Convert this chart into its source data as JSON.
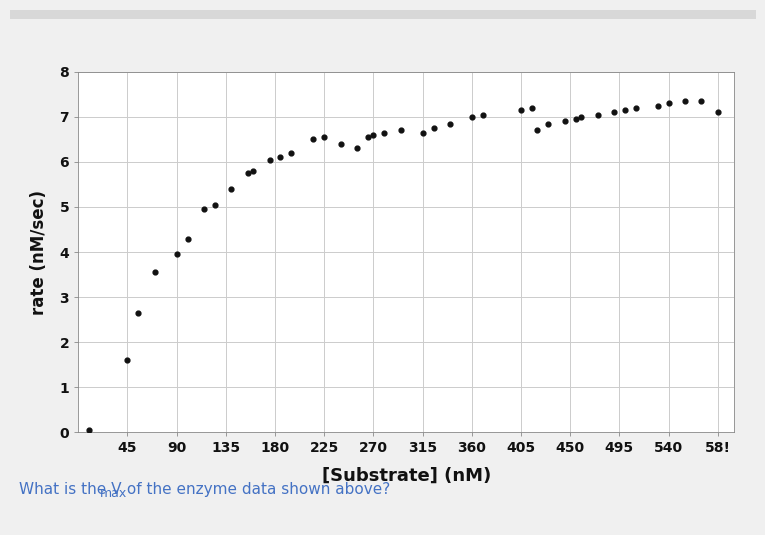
{
  "x_values": [
    10,
    45,
    55,
    70,
    90,
    100,
    115,
    125,
    140,
    155,
    160,
    175,
    185,
    195,
    215,
    225,
    240,
    255,
    265,
    270,
    280,
    295,
    315,
    325,
    340,
    360,
    370,
    405,
    415,
    420,
    430,
    445,
    455,
    460,
    475,
    490,
    500,
    510,
    530,
    540,
    555,
    570,
    585
  ],
  "y_values": [
    0.05,
    1.6,
    2.65,
    3.55,
    3.95,
    4.3,
    4.95,
    5.05,
    5.4,
    5.75,
    5.8,
    6.05,
    6.1,
    6.2,
    6.5,
    6.55,
    6.4,
    6.3,
    6.55,
    6.6,
    6.65,
    6.7,
    6.65,
    6.75,
    6.85,
    7.0,
    7.05,
    7.15,
    7.2,
    6.7,
    6.85,
    6.9,
    6.95,
    7.0,
    7.05,
    7.1,
    7.15,
    7.2,
    7.25,
    7.3,
    7.35,
    7.35,
    7.1
  ],
  "xlabel": "[Substrate] (nM)",
  "ylabel": "rate (nM/sec)",
  "xlim": [
    0,
    600
  ],
  "ylim": [
    0,
    8
  ],
  "xticks": [
    45,
    90,
    135,
    180,
    225,
    270,
    315,
    360,
    405,
    450,
    495,
    540,
    585
  ],
  "yticks": [
    0,
    1,
    2,
    3,
    4,
    5,
    6,
    7,
    8
  ],
  "dot_color": "#111111",
  "dot_size": 12,
  "grid_color": "#cccccc",
  "page_bg": "#f0f0f0",
  "card_bg": "#ffffff",
  "plot_bg_color": "#ffffff",
  "question_color": "#4472c4",
  "question_fontsize": 11,
  "top_bar_color": "#d8d8d8",
  "top_bar_height": 0.018
}
